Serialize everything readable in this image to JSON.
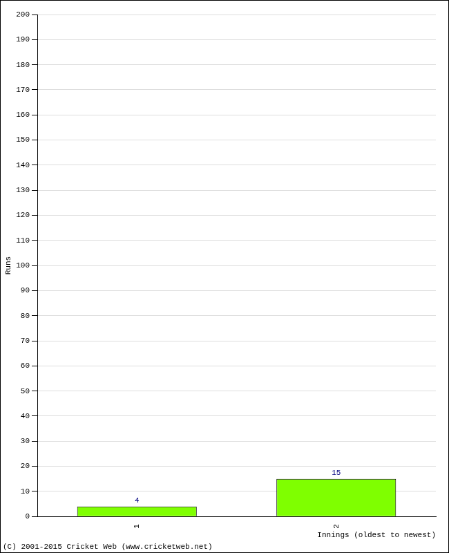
{
  "chart_data": {
    "type": "bar",
    "categories": [
      "1",
      "2"
    ],
    "values": [
      4,
      15
    ],
    "color": "#7fff00",
    "ylabel": "Runs",
    "xlabel": "Innings (oldest to newest)",
    "ylim": [
      0,
      200
    ],
    "yticks": [
      0,
      10,
      20,
      30,
      40,
      50,
      60,
      70,
      80,
      90,
      100,
      110,
      120,
      130,
      140,
      150,
      160,
      170,
      180,
      190,
      200
    ],
    "grid": true,
    "data_labels": true,
    "annotations": [
      "(C) 2001-2015 Cricket Web (www.cricketweb.net)"
    ]
  }
}
